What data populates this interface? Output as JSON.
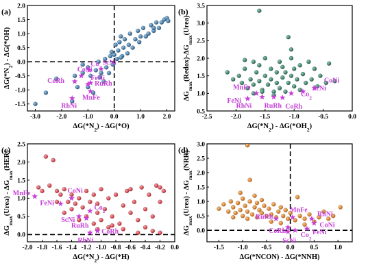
{
  "chart_data": [
    {
      "type": "scatter",
      "panel_label": "(a)",
      "xlabel": "ΔG(*N₂) - ΔG(*O)",
      "ylabel": "ΔG(*N₂) - ΔG(*OH)",
      "xlim": [
        -3.3,
        2.3
      ],
      "ylim": [
        -1.75,
        2.0
      ],
      "xticks": [
        -3.0,
        -2.0,
        -1.0,
        0.0,
        1.0,
        2.0
      ],
      "yticks": [
        -1.5,
        -1.0,
        -0.5,
        0.0,
        0.5,
        1.0,
        1.5,
        2.0
      ],
      "guides": {
        "x": 0.0,
        "y": 0.0
      },
      "point_color": "#2c6ea3",
      "star_color": "#c63fd8",
      "points": [
        [
          -3.0,
          -1.5
        ],
        [
          -2.6,
          -1.1
        ],
        [
          -2.2,
          -0.6
        ],
        [
          -1.6,
          -1.4
        ],
        [
          -1.4,
          -0.9
        ],
        [
          -1.5,
          -0.5
        ],
        [
          -1.2,
          -0.4
        ],
        [
          -1.2,
          -0.1
        ],
        [
          -1.0,
          -0.2
        ],
        [
          -1.0,
          -0.9
        ],
        [
          -0.9,
          -0.5
        ],
        [
          -0.8,
          -1.1
        ],
        [
          -0.7,
          -0.3
        ],
        [
          -0.6,
          0.0
        ],
        [
          -0.5,
          -0.4
        ],
        [
          -0.4,
          -0.7
        ],
        [
          -0.35,
          0.1
        ],
        [
          -0.3,
          -0.2
        ],
        [
          -0.2,
          -0.4
        ],
        [
          -0.15,
          0.2
        ],
        [
          -0.1,
          0.35
        ],
        [
          -0.05,
          -0.1
        ],
        [
          0.0,
          0.25
        ],
        [
          0.05,
          0.6
        ],
        [
          0.1,
          0.1
        ],
        [
          0.15,
          0.4
        ],
        [
          0.2,
          0.7
        ],
        [
          0.25,
          0.9
        ],
        [
          0.3,
          0.2
        ],
        [
          0.35,
          0.5
        ],
        [
          0.4,
          0.8
        ],
        [
          0.5,
          0.3
        ],
        [
          0.55,
          0.6
        ],
        [
          0.6,
          1.0
        ],
        [
          0.7,
          0.5
        ],
        [
          0.8,
          0.8
        ],
        [
          0.9,
          1.1
        ],
        [
          1.0,
          0.9
        ],
        [
          1.1,
          1.2
        ],
        [
          1.2,
          0.9
        ],
        [
          1.3,
          1.0
        ],
        [
          1.4,
          1.3
        ],
        [
          1.5,
          1.1
        ],
        [
          1.6,
          1.4
        ],
        [
          1.7,
          1.2
        ],
        [
          1.8,
          1.4
        ],
        [
          1.9,
          1.5
        ],
        [
          2.0,
          1.55
        ],
        [
          2.05,
          1.45
        ],
        [
          1.5,
          1.2
        ],
        [
          0.95,
          0.7
        ],
        [
          0.25,
          0.15
        ],
        [
          -0.55,
          -0.55
        ]
      ],
      "stars": [
        {
          "label": "CoNi",
          "x": -1.25,
          "y": -0.5
        },
        {
          "label": "Co₂",
          "x": -0.95,
          "y": -0.3
        },
        {
          "label": "ScNi",
          "x": -0.5,
          "y": -0.25
        },
        {
          "label": "CoRh",
          "x": -1.5,
          "y": -0.7
        },
        {
          "label": "FeNi",
          "x": -1.0,
          "y": -0.8
        },
        {
          "label": "RuRh",
          "x": -0.9,
          "y": -0.75
        },
        {
          "label": "MnFe",
          "x": -0.9,
          "y": -1.05
        },
        {
          "label": "RhNi",
          "x": -1.6,
          "y": -1.3
        }
      ]
    },
    {
      "type": "scatter",
      "panel_label": "(b)",
      "xlabel": "ΔG(*N₂) - ΔG(*OH₂)",
      "ylabel": "ΔGmax(Redox)-ΔGmax(Urea)",
      "xlim": [
        -2.5,
        0.0
      ],
      "ylim": [
        0.5,
        3.5
      ],
      "xticks": [
        -2.5,
        -2.0,
        -1.5,
        -1.0,
        -0.5,
        0.0
      ],
      "yticks": [
        0.5,
        1.0,
        1.5,
        2.0,
        2.5,
        3.0,
        3.5
      ],
      "point_color": "#2e7a63",
      "star_color": "#c63fd8",
      "points": [
        [
          -1.6,
          3.35
        ],
        [
          -2.15,
          1.6
        ],
        [
          -2.05,
          1.4
        ],
        [
          -1.95,
          1.5
        ],
        [
          -1.9,
          1.3
        ],
        [
          -1.85,
          1.7
        ],
        [
          -1.8,
          1.15
        ],
        [
          -1.75,
          1.4
        ],
        [
          -1.7,
          1.9
        ],
        [
          -1.7,
          1.25
        ],
        [
          -1.65,
          1.6
        ],
        [
          -1.6,
          1.35
        ],
        [
          -1.6,
          1.8
        ],
        [
          -1.55,
          1.1
        ],
        [
          -1.5,
          1.5
        ],
        [
          -1.5,
          2.0
        ],
        [
          -1.45,
          1.25
        ],
        [
          -1.4,
          1.7
        ],
        [
          -1.4,
          1.4
        ],
        [
          -1.35,
          1.05
        ],
        [
          -1.3,
          1.6
        ],
        [
          -1.3,
          1.3
        ],
        [
          -1.25,
          1.9
        ],
        [
          -1.25,
          1.15
        ],
        [
          -1.2,
          1.45
        ],
        [
          -1.2,
          1.75
        ],
        [
          -1.15,
          1.05
        ],
        [
          -1.15,
          1.6
        ],
        [
          -1.1,
          1.3
        ],
        [
          -1.1,
          2.6
        ],
        [
          -1.05,
          1.5
        ],
        [
          -1.05,
          2.0
        ],
        [
          -1.0,
          1.2
        ],
        [
          -1.0,
          1.7
        ],
        [
          -0.95,
          1.4
        ],
        [
          -0.9,
          1.8
        ],
        [
          -0.9,
          1.1
        ],
        [
          -0.85,
          1.55
        ],
        [
          -0.8,
          1.3
        ],
        [
          -0.75,
          1.9
        ],
        [
          -0.7,
          1.4
        ],
        [
          -0.65,
          1.7
        ],
        [
          -0.6,
          1.2
        ],
        [
          -0.55,
          1.5
        ],
        [
          -0.45,
          1.3
        ],
        [
          -0.4,
          1.85
        ],
        [
          -1.7,
          1.0
        ],
        [
          -1.35,
          0.95
        ],
        [
          -1.55,
          1.05
        ],
        [
          -0.3,
          1.35
        ],
        [
          -1.85,
          1.95
        ],
        [
          -1.05,
          2.25
        ]
      ],
      "stars": [
        {
          "label": "MnFe",
          "x": -1.65,
          "y": 1.0
        },
        {
          "label": "FeNi",
          "x": -1.8,
          "y": 0.85
        },
        {
          "label": "RhNi",
          "x": -1.55,
          "y": 0.9
        },
        {
          "label": "RuRh",
          "x": -1.35,
          "y": 0.9
        },
        {
          "label": "CoRh",
          "x": -1.2,
          "y": 0.88
        },
        {
          "label": "Co₂",
          "x": -1.05,
          "y": 1.0
        },
        {
          "label": "ScNi",
          "x": -0.85,
          "y": 1.05
        },
        {
          "label": "CoNi",
          "x": -0.65,
          "y": 1.15
        }
      ]
    },
    {
      "type": "scatter",
      "panel_label": "(c)",
      "xlabel": "ΔG(*N₂) - ΔG(*H)",
      "ylabel": "ΔGmax(Urea) - ΔGmax(HER)",
      "xlim": [
        -2.0,
        0.0
      ],
      "ylim": [
        -0.2,
        2.5
      ],
      "xticks": [
        -2.0,
        -1.8,
        -1.6,
        -1.4,
        -1.2,
        -1.0,
        -0.8,
        -0.6,
        -0.4,
        -0.2,
        0.0
      ],
      "yticks": [
        0.0,
        0.5,
        1.0,
        1.5,
        2.0,
        2.5
      ],
      "guides": {
        "y": 0.0
      },
      "point_color": "#e3464f",
      "star_color": "#c63fd8",
      "points": [
        [
          -1.75,
          2.15
        ],
        [
          -1.65,
          2.05
        ],
        [
          -1.85,
          1.3
        ],
        [
          -1.8,
          1.2
        ],
        [
          -1.7,
          1.35
        ],
        [
          -1.6,
          1.2
        ],
        [
          -1.55,
          1.1
        ],
        [
          -1.5,
          1.25
        ],
        [
          -1.45,
          0.9
        ],
        [
          -1.4,
          1.1
        ],
        [
          -1.4,
          0.7
        ],
        [
          -1.35,
          0.85
        ],
        [
          -1.3,
          1.0
        ],
        [
          -1.3,
          0.4
        ],
        [
          -1.25,
          0.75
        ],
        [
          -1.2,
          1.2
        ],
        [
          -1.2,
          0.5
        ],
        [
          -1.15,
          0.9
        ],
        [
          -1.1,
          0.3
        ],
        [
          -1.1,
          1.1
        ],
        [
          -1.05,
          0.6
        ],
        [
          -1.05,
          0.85
        ],
        [
          -1.0,
          1.25
        ],
        [
          -1.0,
          0.4
        ],
        [
          -0.95,
          0.7
        ],
        [
          -0.9,
          1.0
        ],
        [
          -0.85,
          0.5
        ],
        [
          -0.8,
          1.1
        ],
        [
          -0.75,
          0.3
        ],
        [
          -0.7,
          0.8
        ],
        [
          -0.65,
          1.2
        ],
        [
          -0.6,
          0.6
        ],
        [
          -0.55,
          0.9
        ],
        [
          -0.5,
          0.4
        ],
        [
          -0.45,
          1.3
        ],
        [
          -0.4,
          0.7
        ],
        [
          -0.35,
          1.1
        ],
        [
          -0.3,
          0.5
        ],
        [
          -0.25,
          1.35
        ],
        [
          -0.2,
          0.9
        ],
        [
          -0.15,
          1.2
        ],
        [
          -0.3,
          0.1
        ],
        [
          -0.5,
          0.05
        ],
        [
          -0.7,
          0.15
        ],
        [
          -0.9,
          0.2
        ],
        [
          -0.2,
          1.3
        ],
        [
          -0.6,
          1.25
        ],
        [
          -1.6,
          0.9
        ],
        [
          -1.5,
          0.6
        ],
        [
          -0.85,
          0.25
        ],
        [
          -0.4,
          0.2
        ],
        [
          -0.2,
          0.05
        ],
        [
          -1.05,
          0.15
        ]
      ],
      "stars": [
        {
          "label": "MnFe",
          "x": -1.9,
          "y": 1.05
        },
        {
          "label": "CoNi",
          "x": -1.4,
          "y": 1.0
        },
        {
          "label": "FeNi",
          "x": -1.55,
          "y": 0.85
        },
        {
          "label": "Co₂",
          "x": -1.15,
          "y": 0.65
        },
        {
          "label": "ScNi",
          "x": -1.3,
          "y": 0.5
        },
        {
          "label": "RuRh",
          "x": -1.2,
          "y": 0.45
        },
        {
          "label": "RhNi",
          "x": -1.15,
          "y": 0.05
        },
        {
          "label": "CoRh",
          "x": -1.05,
          "y": 0.1
        }
      ]
    },
    {
      "type": "scatter",
      "panel_label": "(d)",
      "xlabel": "ΔG(*NCON) - ΔG(*NNH)",
      "ylabel": "ΔGmax(Urea) - ΔGmax(NRR)",
      "xlim": [
        -1.75,
        1.3
      ],
      "ylim": [
        -0.4,
        3.0
      ],
      "xticks": [
        -1.5,
        -1.0,
        -0.5,
        0.0,
        0.5,
        1.0
      ],
      "yticks": [
        0.0,
        0.5,
        1.0,
        1.5,
        2.0,
        2.5,
        3.0
      ],
      "guides": {
        "x": 0.0,
        "y": 0.0
      },
      "point_color": "#e8821e",
      "star_color": "#c63fd8",
      "points": [
        [
          -0.9,
          2.95
        ],
        [
          -1.5,
          0.75
        ],
        [
          -1.4,
          0.9
        ],
        [
          -1.3,
          0.65
        ],
        [
          -1.25,
          1.0
        ],
        [
          -1.2,
          0.8
        ],
        [
          -1.15,
          0.6
        ],
        [
          -1.1,
          0.95
        ],
        [
          -1.05,
          0.7
        ],
        [
          -1.0,
          1.1
        ],
        [
          -1.0,
          0.5
        ],
        [
          -0.95,
          0.85
        ],
        [
          -0.9,
          0.65
        ],
        [
          -0.85,
          1.0
        ],
        [
          -0.8,
          0.55
        ],
        [
          -0.75,
          0.8
        ],
        [
          -0.7,
          0.45
        ],
        [
          -0.7,
          0.95
        ],
        [
          -0.65,
          0.7
        ],
        [
          -0.6,
          0.6
        ],
        [
          -0.55,
          0.85
        ],
        [
          -0.5,
          0.5
        ],
        [
          -0.45,
          0.75
        ],
        [
          -0.4,
          0.55
        ],
        [
          -0.35,
          0.9
        ],
        [
          -0.3,
          0.45
        ],
        [
          -0.25,
          0.65
        ],
        [
          -0.2,
          0.8
        ],
        [
          -0.15,
          0.5
        ],
        [
          -0.1,
          0.7
        ],
        [
          -0.05,
          0.4
        ],
        [
          0.0,
          0.6
        ],
        [
          0.1,
          0.35
        ],
        [
          0.2,
          0.5
        ],
        [
          0.3,
          0.4
        ],
        [
          0.4,
          0.55
        ],
        [
          0.5,
          0.3
        ],
        [
          0.6,
          0.45
        ],
        [
          0.7,
          0.65
        ],
        [
          0.8,
          0.4
        ],
        [
          0.9,
          0.5
        ],
        [
          1.05,
          0.8
        ],
        [
          -0.85,
          1.75
        ],
        [
          -1.05,
          1.3
        ],
        [
          -0.6,
          1.05
        ],
        [
          -0.4,
          0.3
        ],
        [
          -0.9,
          0.4
        ],
        [
          -1.2,
          0.45
        ],
        [
          -0.2,
          0.25
        ],
        [
          0.3,
          0.2
        ],
        [
          -0.75,
          1.2
        ],
        [
          0.15,
          1.15
        ]
      ],
      "stars": [
        {
          "label": "MnFe",
          "x": 0.05,
          "y": 0.45
        },
        {
          "label": "RuRh",
          "x": -0.3,
          "y": 0.4
        },
        {
          "label": "RhNi",
          "x": 0.45,
          "y": 0.4
        },
        {
          "label": "CoNi",
          "x": 0.5,
          "y": 0.25
        },
        {
          "label": "CoRh",
          "x": -0.05,
          "y": 0.1
        },
        {
          "label": "ScNi",
          "x": -0.05,
          "y": -0.05
        },
        {
          "label": "Co₂",
          "x": 0.1,
          "y": 0.0
        },
        {
          "label": "FeNi",
          "x": 0.35,
          "y": 0.05
        }
      ]
    }
  ]
}
